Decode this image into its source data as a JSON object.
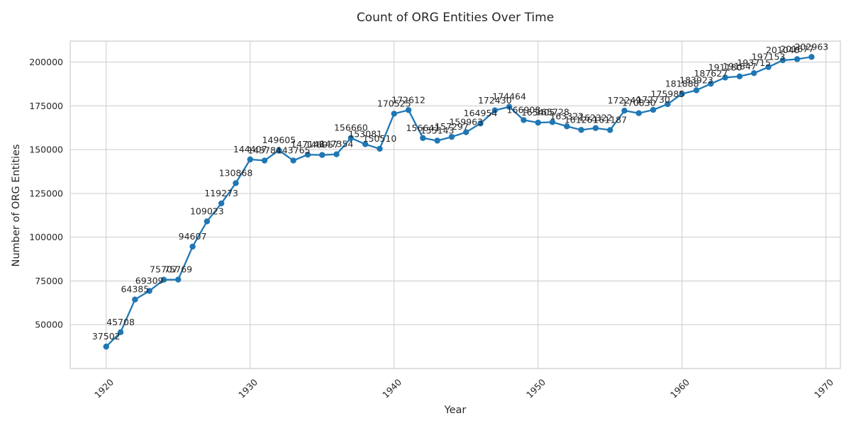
{
  "chart_data": {
    "type": "line",
    "title": "Count of ORG Entities Over Time",
    "xlabel": "Year",
    "ylabel": "Number of ORG Entities",
    "xlim": [
      1917.5,
      1971
    ],
    "ylim": [
      25000,
      212000
    ],
    "xticks": [
      1920,
      1930,
      1940,
      1950,
      1960,
      1970
    ],
    "yticks": [
      50000,
      75000,
      100000,
      125000,
      150000,
      175000,
      200000
    ],
    "grid": true,
    "color": "#1f77b4",
    "series": [
      {
        "x": [
          1920,
          1921,
          1922,
          1923,
          1924,
          1925,
          1926,
          1927,
          1928,
          1929,
          1930,
          1931,
          1932,
          1933,
          1934,
          1935,
          1936,
          1937,
          1938,
          1939,
          1940,
          1941,
          1942,
          1943,
          1944,
          1945,
          1946,
          1947,
          1948,
          1949,
          1950,
          1951,
          1952,
          1953,
          1954,
          1955,
          1956,
          1957,
          1958,
          1959,
          1960,
          1961,
          1962,
          1963,
          1964,
          1965,
          1966,
          1967,
          1968,
          1969
        ],
        "y": [
          37502,
          45708,
          64385,
          69309,
          75707,
          75769,
          94607,
          109023,
          119273,
          130868,
          144407,
          143784,
          149605,
          143765,
          147148,
          146957,
          147354,
          156660,
          153081,
          150510,
          170525,
          172612,
          156641,
          155143,
          157297,
          159963,
          164954,
          172430,
          174464,
          166908,
          165405,
          165728,
          163322,
          161261,
          162322,
          161187,
          172249,
          170830,
          172730,
          175985,
          181888,
          183923,
          187627,
          191180,
          191847,
          193715,
          197153,
          201040,
          201677,
          202963
        ]
      }
    ]
  }
}
